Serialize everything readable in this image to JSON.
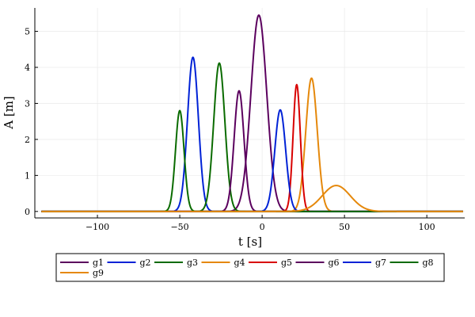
{
  "chart_data": {
    "type": "line",
    "title": "",
    "xlabel": "t [s]",
    "ylabel": "A [m]",
    "xlim": [
      -138,
      123
    ],
    "ylim": [
      -0.18,
      5.65
    ],
    "x_ticks": [
      -100,
      -50,
      0,
      50,
      100
    ],
    "y_ticks": [
      0,
      1,
      2,
      3,
      4,
      5
    ],
    "grid": true,
    "legend_position": "bottom-outside",
    "x_range": [
      -134,
      122
    ],
    "series": [
      {
        "name": "g1",
        "color": "#5b005e",
        "peak_t": -2,
        "amplitude": 5.45,
        "sigma": 4.8
      },
      {
        "name": "g2",
        "color": "#0022d6",
        "peak_t": -42,
        "amplitude": 4.28,
        "sigma": 3.3
      },
      {
        "name": "g3",
        "color": "#0a6b00",
        "peak_t": -26,
        "amplitude": 4.12,
        "sigma": 3.4
      },
      {
        "name": "g4",
        "color": "#e5880b",
        "peak_t": 30,
        "amplitude": 3.7,
        "sigma": 3.5
      },
      {
        "name": "g5",
        "color": "#d80000",
        "peak_t": 21,
        "amplitude": 3.52,
        "sigma": 2.2
      },
      {
        "name": "g6",
        "color": "#5b005e",
        "peak_t": -14,
        "amplitude": 3.35,
        "sigma": 3.0
      },
      {
        "name": "g7",
        "color": "#0022d6",
        "peak_t": 11,
        "amplitude": 2.82,
        "sigma": 3.3
      },
      {
        "name": "g8",
        "color": "#0a6b00",
        "peak_t": -50,
        "amplitude": 2.8,
        "sigma": 2.6
      },
      {
        "name": "g9",
        "color": "#e5880b",
        "peak_t": 45,
        "amplitude": 0.72,
        "sigma": 8.5
      }
    ]
  }
}
